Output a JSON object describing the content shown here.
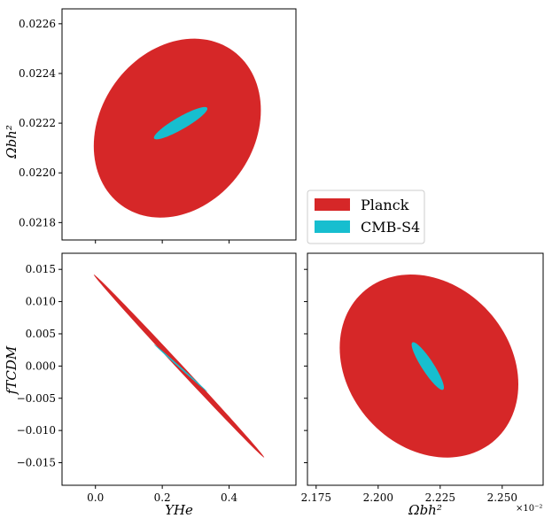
{
  "chart_data": [
    {
      "type": "scatter",
      "panel": "top-left",
      "title": "",
      "xlabel": "",
      "ylabel": "Ωbh²",
      "xlim": [
        -0.1,
        0.6
      ],
      "ylim": [
        0.02173,
        0.02266
      ],
      "xticks": [
        0.0,
        0.2,
        0.4
      ],
      "yticks": [
        0.0218,
        0.022,
        0.0222,
        0.0224,
        0.0226
      ],
      "ytick_labels": [
        "0.0218",
        "0.0220",
        "0.0222",
        "0.0224",
        "0.0226"
      ],
      "series": [
        {
          "name": "Planck",
          "color": "#d62728",
          "center": [
            0.245,
            0.02218
          ],
          "x_extent": [
            -0.0,
            0.5
          ],
          "y_extent": [
            0.02183,
            0.02255
          ],
          "correlation": 0.2
        },
        {
          "name": "CMB-S4",
          "color": "#17becf",
          "center": [
            0.255,
            0.0222
          ],
          "x_extent": [
            0.17,
            0.33
          ],
          "y_extent": [
            0.02214,
            0.02227
          ],
          "correlation": 0.9
        }
      ]
    },
    {
      "type": "scatter",
      "panel": "bottom-left",
      "title": "",
      "xlabel": "YHe",
      "ylabel": "fTCDM",
      "xlim": [
        -0.1,
        0.6
      ],
      "ylim": [
        -0.0185,
        0.0175
      ],
      "xticks": [
        0.0,
        0.2,
        0.4
      ],
      "xtick_labels": [
        "0.0",
        "0.2",
        "0.4"
      ],
      "yticks": [
        0.015,
        0.01,
        0.005,
        0.0,
        -0.005,
        -0.01,
        -0.015
      ],
      "ytick_labels": [
        "0.015",
        "0.010",
        "0.005",
        "0.000",
        "−0.005",
        "−0.010",
        "−0.015"
      ],
      "series": [
        {
          "name": "Planck",
          "color": "#d62728",
          "center": [
            0.25,
            0.0
          ],
          "x_extent": [
            -0.005,
            0.505
          ],
          "y_extent": [
            -0.0142,
            0.0142
          ],
          "correlation": -0.999
        },
        {
          "name": "CMB-S4",
          "color": "#17becf",
          "center": [
            0.255,
            -0.0003
          ],
          "x_extent": [
            0.17,
            0.33
          ],
          "y_extent": [
            -0.0037,
            0.0037
          ],
          "correlation": -0.999
        }
      ]
    },
    {
      "type": "scatter",
      "panel": "bottom-right",
      "title": "",
      "xlabel": "Ωbh²",
      "ylabel": "",
      "xlim": [
        2.1715,
        2.2665
      ],
      "ylim": [
        -0.0185,
        0.0175
      ],
      "x_offset_label": "×10⁻²",
      "xticks": [
        2.175,
        2.2,
        2.225,
        2.25
      ],
      "xtick_labels": [
        "2.175",
        "2.200",
        "2.225",
        "2.250"
      ],
      "series": [
        {
          "name": "Planck",
          "color": "#d62728",
          "center": [
            2.2205,
            0.0
          ],
          "x_extent": [
            2.183,
            2.255
          ],
          "y_extent": [
            -0.0142,
            0.0142
          ],
          "correlation": -0.2
        },
        {
          "name": "CMB-S4",
          "color": "#17becf",
          "center": [
            2.22,
            0.0
          ],
          "x_extent": [
            2.2135,
            2.2265
          ],
          "y_extent": [
            -0.0037,
            0.0037
          ],
          "correlation": -0.9
        }
      ]
    }
  ],
  "legend": {
    "placement": "center-right",
    "entries": [
      {
        "label": "Planck",
        "color": "#d62728"
      },
      {
        "label": "CMB-S4",
        "color": "#17becf"
      }
    ]
  }
}
